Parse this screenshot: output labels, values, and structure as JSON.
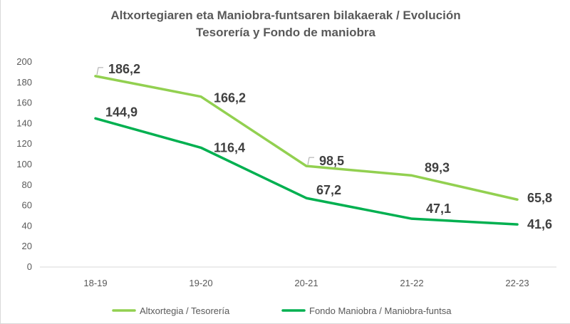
{
  "chart_data": {
    "type": "line",
    "title_line1": "Altxortegiaren eta Maniobra-funtsaren bilakaerak / Evolución",
    "title_line2": "Tesorería y Fondo de maniobra",
    "categories": [
      "18-19",
      "19-20",
      "20-21",
      "21-22",
      "22-23"
    ],
    "ylim": [
      0,
      200
    ],
    "yticks": [
      0,
      20,
      40,
      60,
      80,
      100,
      120,
      140,
      160,
      180,
      200
    ],
    "grid": false,
    "legend_position": "bottom",
    "series": [
      {
        "name": "Altxortegia / Tesorería",
        "color": "#92d050",
        "values": [
          186.2,
          166.2,
          98.5,
          89.3,
          65.8
        ],
        "labels": [
          "186,2",
          "166,2",
          "98,5",
          "89,3",
          "65,8"
        ]
      },
      {
        "name": "Fondo Maniobra / Maniobra-funtsa",
        "color": "#00b050",
        "values": [
          144.9,
          116.4,
          67.2,
          47.1,
          41.6
        ],
        "labels": [
          "144,9",
          "116,4",
          "67,2",
          "47,1",
          "41,6"
        ]
      }
    ]
  }
}
